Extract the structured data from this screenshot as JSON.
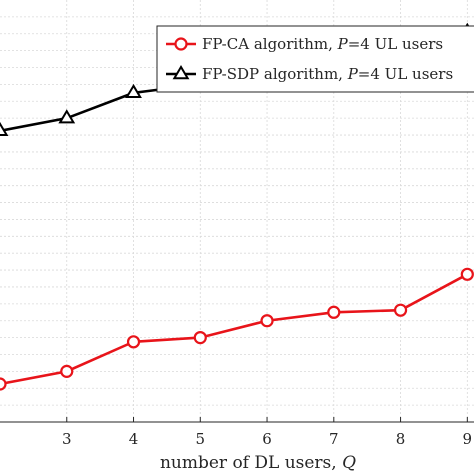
{
  "chart_data": {
    "type": "line",
    "title": "",
    "xlabel": "number of DL users, Q",
    "xlabel_prefix": "number of DL users, ",
    "xlabel_var": "Q",
    "ylabel": "",
    "x": [
      2,
      3,
      4,
      5,
      6,
      7,
      8,
      9
    ],
    "x_tick_labels": [
      "3",
      "4",
      "5",
      "6",
      "7",
      "8",
      "9"
    ],
    "xlim": [
      2,
      9.1
    ],
    "ylim": [
      0,
      1
    ],
    "grid": true,
    "legend_position": "top-right",
    "series": [
      {
        "name": "FP-CA algorithm, P=4 UL users",
        "label_prefix": "FP-CA algorithm, ",
        "label_var": "P",
        "label_suffix": "=4 UL users",
        "color": "#e8141a",
        "marker": "circle",
        "values": [
          0.09,
          0.12,
          0.19,
          0.2,
          0.24,
          0.26,
          0.265,
          0.35
        ]
      },
      {
        "name": "FP-SDP algorithm, P=4 UL users",
        "label_prefix": "FP-SDP algorithm, ",
        "label_var": "P",
        "label_suffix": "=4 UL users",
        "color": "#000000",
        "marker": "triangle",
        "values": [
          0.69,
          0.72,
          0.78,
          0.8,
          0.84,
          0.86,
          0.905,
          0.925
        ]
      }
    ]
  }
}
